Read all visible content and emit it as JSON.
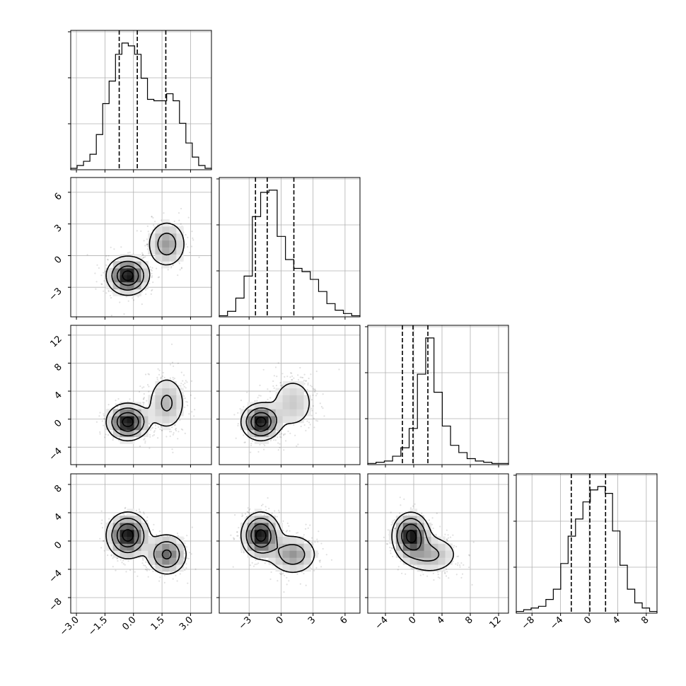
{
  "chart_data": {
    "type": "corner",
    "n_params": 4,
    "grid": true,
    "params": [
      {
        "range": [
          -3.3,
          4.1
        ],
        "ticks": [
          -3.0,
          -1.5,
          0.0,
          1.5,
          3.0
        ],
        "tick_labels": [
          "−3.0",
          "−1.5",
          "0.0",
          "1.5",
          "3.0"
        ],
        "quantiles": [
          -0.75,
          0.2,
          1.7
        ],
        "hist_counts": [
          1,
          3,
          6,
          11,
          25,
          47,
          63,
          82,
          90,
          88,
          82,
          65,
          50,
          49,
          49,
          54,
          49,
          33,
          19,
          9,
          3,
          1
        ],
        "modes": [
          {
            "mean": -0.3,
            "sd": 0.55,
            "weight": 0.62
          },
          {
            "mean": 1.75,
            "sd": 0.55,
            "weight": 0.38
          }
        ]
      },
      {
        "range": [
          -5.8,
          7.4
        ],
        "ticks": [
          -3,
          0,
          3,
          6
        ],
        "tick_labels": [
          "−3",
          "0",
          "3",
          "6"
        ],
        "quantiles": [
          -2.4,
          -1.3,
          1.2
        ],
        "hist_counts": [
          1,
          5,
          17,
          37,
          91,
          113,
          115,
          73,
          52,
          44,
          41,
          34,
          23,
          12,
          6,
          3,
          1
        ],
        "modes": [
          {
            "mean": -1.9,
            "sd": 0.9,
            "weight": 0.62
          },
          {
            "mean": 1.1,
            "sd": 1.2,
            "weight": 0.38
          }
        ]
      },
      {
        "range": [
          -6.5,
          13.4
        ],
        "ticks": [
          -4,
          0,
          4,
          8,
          12
        ],
        "tick_labels": [
          "−4",
          "0",
          "4",
          "8",
          "12"
        ],
        "quantiles": [
          -1.6,
          -0.1,
          2.0
        ],
        "hist_counts": [
          1,
          2,
          3,
          7,
          14,
          30,
          75,
          105,
          60,
          32,
          16,
          10,
          5,
          3,
          2,
          1,
          1
        ],
        "modes": [
          {
            "mean": -0.4,
            "sd": 1.3,
            "weight": 0.62
          },
          {
            "mean": 2.3,
            "sd": 2.2,
            "weight": 0.38
          }
        ]
      },
      {
        "range": [
          -10.2,
          9.5
        ],
        "ticks": [
          -8,
          -4,
          0,
          4,
          8
        ],
        "tick_labels": [
          "−8",
          "−4",
          "0",
          "4",
          "8"
        ],
        "quantiles": [
          -2.5,
          0.1,
          2.3
        ],
        "hist_counts": [
          1,
          2,
          3,
          4,
          8,
          14,
          29,
          45,
          55,
          65,
          72,
          74,
          70,
          48,
          28,
          14,
          6,
          3,
          1
        ],
        "modes": [
          {
            "mean": 0.8,
            "sd": 1.6,
            "weight": 0.62
          },
          {
            "mean": -1.9,
            "sd": 1.5,
            "weight": 0.38
          }
        ]
      }
    ],
    "pairs": [
      {
        "row": 1,
        "col": 0,
        "m1": [
          -0.3,
          -1.9
        ],
        "s1": [
          0.55,
          0.9
        ],
        "m2": [
          1.75,
          1.1
        ],
        "s2": [
          0.55,
          1.2
        ],
        "w1": 0.62
      },
      {
        "row": 2,
        "col": 0,
        "m1": [
          -0.3,
          -0.4
        ],
        "s1": [
          0.55,
          1.3
        ],
        "m2": [
          1.75,
          2.3
        ],
        "s2": [
          0.55,
          2.2
        ],
        "w1": 0.62
      },
      {
        "row": 2,
        "col": 1,
        "m1": [
          -1.9,
          -0.4
        ],
        "s1": [
          0.9,
          1.3
        ],
        "m2": [
          1.1,
          2.3
        ],
        "s2": [
          1.2,
          2.2
        ],
        "w1": 0.62
      },
      {
        "row": 3,
        "col": 0,
        "m1": [
          -0.3,
          0.8
        ],
        "s1": [
          0.55,
          1.6
        ],
        "m2": [
          1.75,
          -1.9
        ],
        "s2": [
          0.55,
          1.5
        ],
        "w1": 0.62
      },
      {
        "row": 3,
        "col": 1,
        "m1": [
          -1.9,
          0.8
        ],
        "s1": [
          0.9,
          1.6
        ],
        "m2": [
          1.1,
          -1.9
        ],
        "s2": [
          1.2,
          1.5
        ],
        "w1": 0.62
      },
      {
        "row": 3,
        "col": 2,
        "m1": [
          -0.4,
          0.8
        ],
        "s1": [
          1.3,
          1.6
        ],
        "m2": [
          2.3,
          -1.9
        ],
        "s2": [
          2.2,
          1.5
        ],
        "w1": 0.62
      }
    ]
  }
}
